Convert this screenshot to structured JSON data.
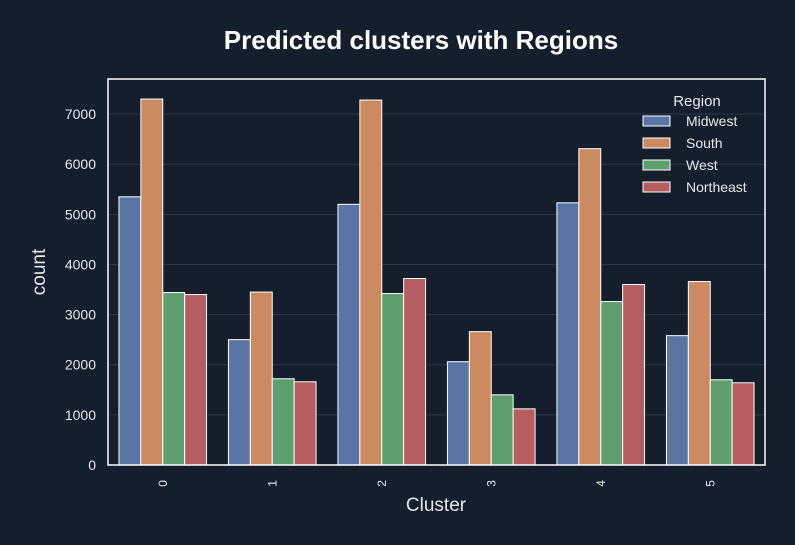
{
  "chart_data": {
    "type": "bar",
    "title": "Predicted clusters with Regions",
    "xlabel": "Cluster",
    "ylabel": "count",
    "categories": [
      "0",
      "1",
      "2",
      "3",
      "4",
      "5"
    ],
    "ylim": [
      0,
      7700
    ],
    "yticks": [
      0,
      1000,
      2000,
      3000,
      4000,
      5000,
      6000,
      7000
    ],
    "grid": true,
    "legend": {
      "title": "Region",
      "position": "top-right"
    },
    "series": [
      {
        "name": "Midwest",
        "color": "#5875a6",
        "values": [
          5350,
          2500,
          5200,
          2060,
          5230,
          2580
        ]
      },
      {
        "name": "South",
        "color": "#cc8a60",
        "values": [
          7300,
          3450,
          7280,
          2660,
          6310,
          3660
        ]
      },
      {
        "name": "West",
        "color": "#5f9e6e",
        "values": [
          3440,
          1720,
          3420,
          1400,
          3260,
          1700
        ]
      },
      {
        "name": "Northeast",
        "color": "#b55d60",
        "values": [
          3400,
          1660,
          3720,
          1120,
          3600,
          1640
        ]
      }
    ]
  },
  "colors": {
    "background": "#141e2c",
    "axes_frame": "#ffffff",
    "grid": "#2c3747",
    "text": "#e6e8ec"
  }
}
